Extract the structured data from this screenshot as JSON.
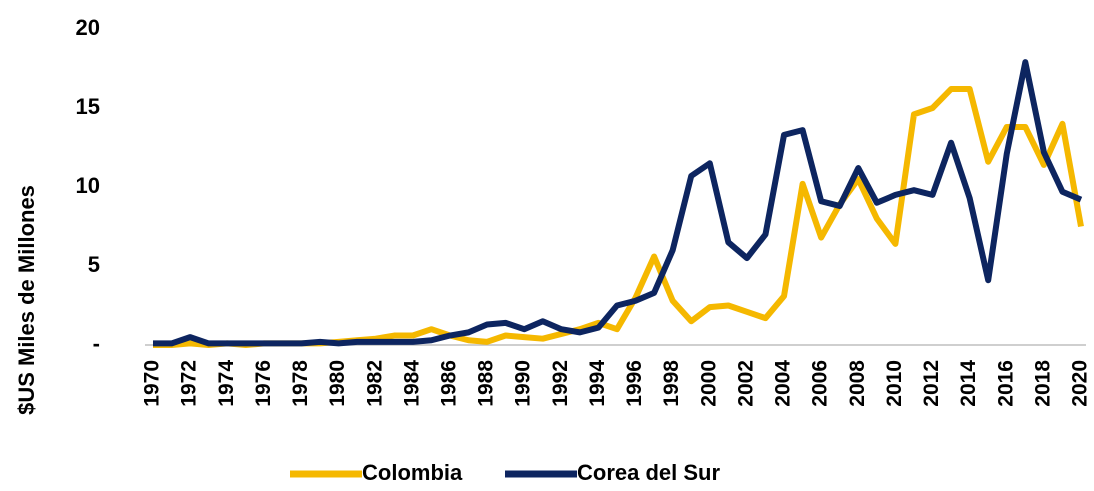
{
  "chart_data": {
    "type": "line",
    "y_label": "$US Miles de Millones",
    "categories": [
      "1970",
      null,
      "1972",
      null,
      "1974",
      null,
      "1976",
      null,
      "1978",
      null,
      "1980",
      null,
      "1982",
      null,
      "1984",
      null,
      "1986",
      null,
      "1988",
      null,
      "1990",
      null,
      "1992",
      null,
      "1994",
      null,
      "1996",
      null,
      "1998",
      null,
      "2000",
      null,
      "2002",
      null,
      "2004",
      null,
      "2006",
      null,
      "2008",
      null,
      "2010",
      null,
      "2012",
      null,
      "2014",
      null,
      "2016",
      null,
      "2018",
      null,
      "2020"
    ],
    "series": [
      {
        "name": "Colombia",
        "color": "#f5b800",
        "values": [
          0.0,
          0.0,
          0.1,
          0.0,
          0.1,
          0.0,
          0.1,
          0.1,
          0.1,
          0.1,
          0.2,
          0.3,
          0.4,
          0.6,
          0.6,
          1.0,
          0.6,
          0.3,
          0.2,
          0.6,
          0.5,
          0.4,
          0.7,
          1.0,
          1.4,
          1.0,
          3.0,
          5.6,
          2.8,
          1.5,
          2.4,
          2.5,
          2.1,
          1.7,
          3.1,
          10.2,
          6.8,
          8.9,
          10.5,
          8.0,
          6.4,
          14.6,
          15.0,
          16.2,
          16.2,
          11.6,
          13.8,
          13.8,
          11.4,
          14.0,
          7.5
        ]
      },
      {
        "name": "Corea del Sur",
        "color": "#0d2560",
        "values": [
          0.1,
          0.1,
          0.5,
          0.1,
          0.1,
          0.1,
          0.1,
          0.1,
          0.1,
          0.2,
          0.1,
          0.2,
          0.2,
          0.2,
          0.2,
          0.3,
          0.6,
          0.8,
          1.3,
          1.4,
          1.0,
          1.5,
          1.0,
          0.8,
          1.1,
          2.5,
          2.8,
          3.3,
          6.0,
          10.7,
          11.5,
          6.5,
          5.5,
          7.0,
          13.3,
          13.6,
          9.1,
          8.8,
          11.2,
          9.0,
          9.5,
          9.8,
          9.5,
          12.8,
          9.3,
          4.1,
          12.1,
          17.9,
          12.2,
          9.7,
          9.2
        ]
      }
    ],
    "ylim": [
      0,
      20
    ],
    "yticks": [
      {
        "value": 0,
        "label": "-"
      },
      5,
      10,
      15,
      20
    ],
    "legend": "bottom"
  }
}
